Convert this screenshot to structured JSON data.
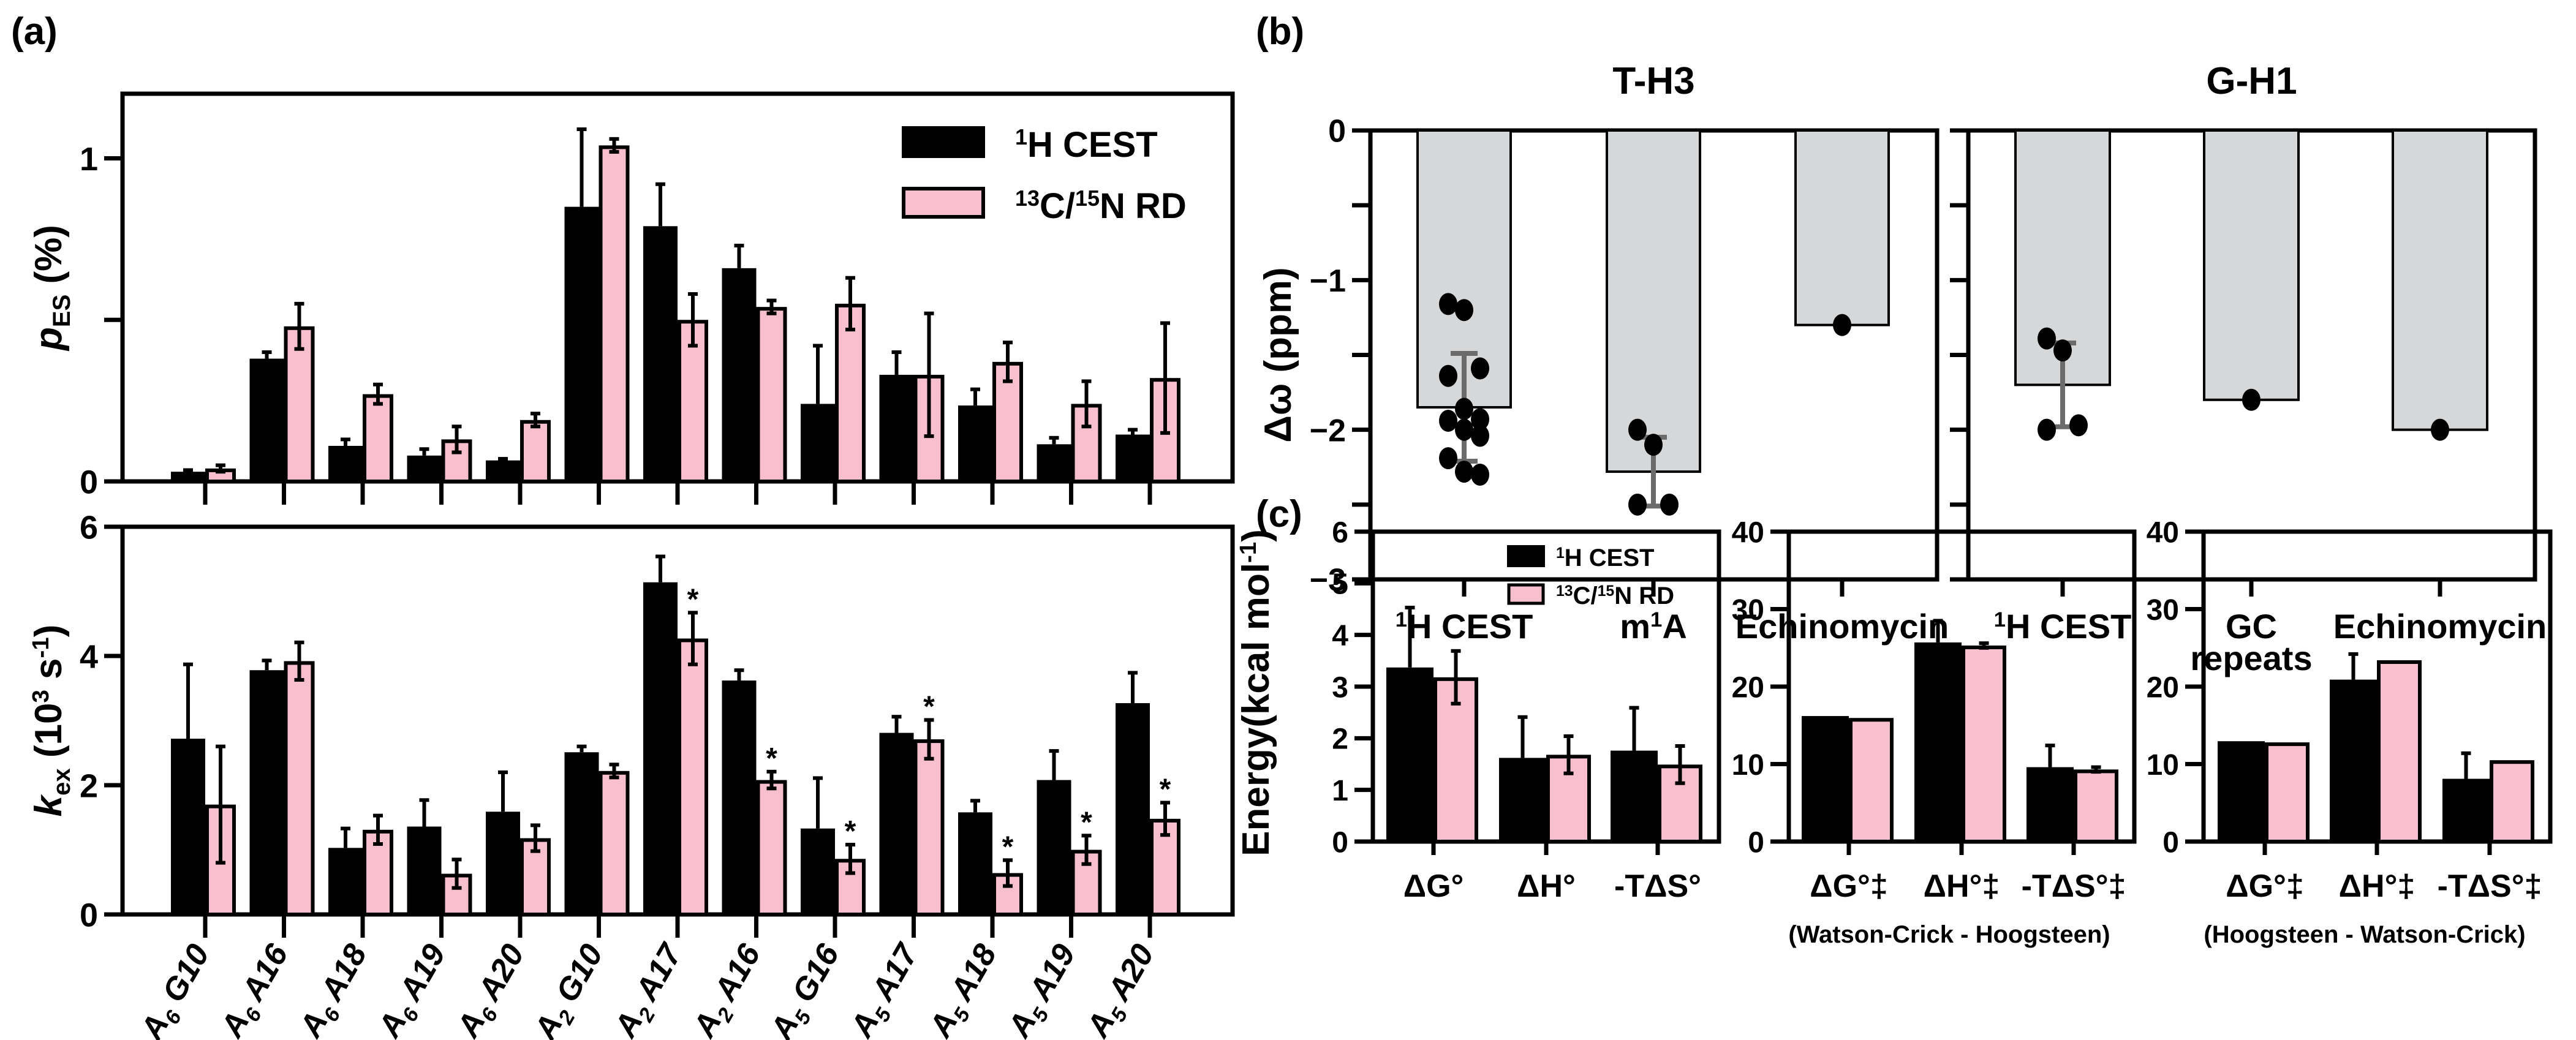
{
  "colors": {
    "cest": "#000000",
    "rd": "#f8c0ce",
    "gray_bar": "#d6d7d9",
    "gray_err": "#6b6b6b"
  },
  "panel_labels": {
    "a": "(a)",
    "b": "(b)",
    "c": "(c)"
  },
  "chart_data": [
    {
      "id": "a-pes",
      "type": "bar",
      "panel": "(a)",
      "title": "",
      "ylabel": "pES (%)",
      "ylabel_main": "p",
      "ylabel_sub": "ES",
      "ylabel_tail": " (%)",
      "xlabel": "",
      "ylim": [
        0,
        1.2
      ],
      "yticks": [
        0,
        0.5,
        1
      ],
      "ytick_labels": [
        "0",
        "",
        "1"
      ],
      "legend": {
        "position": "top-right",
        "entries": [
          "¹H CEST",
          "¹³C/¹⁵N RD"
        ]
      },
      "categories": [
        {
          "base": "A",
          "sub": "6",
          "name": "G10"
        },
        {
          "base": "A",
          "sub": "6",
          "name": "A16"
        },
        {
          "base": "A",
          "sub": "6",
          "name": "A18"
        },
        {
          "base": "A",
          "sub": "6",
          "name": "A19"
        },
        {
          "base": "A",
          "sub": "6",
          "name": "A20"
        },
        {
          "base": "A",
          "sub": "2",
          "name": "G10"
        },
        {
          "base": "A",
          "sub": "2",
          "name": "A17"
        },
        {
          "base": "A",
          "sub": "2",
          "name": "A16"
        },
        {
          "base": "A",
          "sub": "5",
          "name": "G16"
        },
        {
          "base": "A",
          "sub": "5",
          "name": "A17"
        },
        {
          "base": "A",
          "sub": "5",
          "name": "A18"
        },
        {
          "base": "A",
          "sub": "5",
          "name": "A19"
        },
        {
          "base": "A",
          "sub": "5",
          "name": "A20"
        }
      ],
      "series": [
        {
          "name": "1H CEST",
          "values": [
            0.03,
            0.38,
            0.11,
            0.08,
            0.065,
            0.85,
            0.79,
            0.66,
            0.24,
            0.33,
            0.235,
            0.115,
            0.145
          ],
          "errors": [
            0.005,
            0.02,
            0.02,
            0.02,
            0.005,
            0.24,
            0.13,
            0.07,
            0.18,
            0.07,
            0.05,
            0.02,
            0.015
          ]
        },
        {
          "name": "13C/15N RD",
          "values": [
            0.04,
            0.48,
            0.27,
            0.13,
            0.19,
            1.04,
            0.5,
            0.54,
            0.55,
            0.33,
            0.37,
            0.24,
            0.32
          ],
          "errors": [
            0.01,
            0.07,
            0.03,
            0.04,
            0.02,
            0.02,
            0.08,
            0.02,
            0.08,
            0.19,
            0.06,
            0.07,
            0.17
          ]
        }
      ]
    },
    {
      "id": "a-kex",
      "type": "bar",
      "panel": "(a)",
      "title": "",
      "ylabel": "kex (10³ s⁻¹)",
      "ylabel_main": "k",
      "ylabel_sub": "ex",
      "ylabel_tail": " (10³ s⁻¹)",
      "xlabel": "",
      "ylim": [
        0,
        6
      ],
      "yticks": [
        0,
        2,
        4,
        6
      ],
      "ytick_labels": [
        "0",
        "2",
        "4",
        "6"
      ],
      "categories_ref": "a-pes",
      "series": [
        {
          "name": "1H CEST",
          "values": [
            2.72,
            3.78,
            1.03,
            1.36,
            1.59,
            2.51,
            5.14,
            3.62,
            1.33,
            2.81,
            1.58,
            2.08,
            3.27
          ],
          "errors": [
            1.15,
            0.15,
            0.3,
            0.41,
            0.61,
            0.09,
            0.4,
            0.16,
            0.78,
            0.25,
            0.18,
            0.45,
            0.47
          ]
        },
        {
          "name": "13C/15N RD",
          "values": [
            1.7,
            3.92,
            1.31,
            0.63,
            1.18,
            2.22,
            4.27,
            2.08,
            0.86,
            2.71,
            0.64,
            1.0,
            1.48
          ],
          "errors": [
            0.9,
            0.29,
            0.22,
            0.22,
            0.2,
            0.1,
            0.4,
            0.13,
            0.22,
            0.3,
            0.2,
            0.22,
            0.25
          ]
        }
      ],
      "significance": [
        "",
        "",
        "",
        "",
        "",
        "",
        "*",
        "*",
        "*",
        "*",
        "*",
        "*",
        "*"
      ],
      "significance_series": "13C/15N RD"
    },
    {
      "id": "b-th3",
      "type": "bar",
      "panel": "(b)",
      "title": "T-H3",
      "ylabel": "Δω (ppm)",
      "xlabel": "",
      "ylim": [
        -3,
        0
      ],
      "yticks": [
        0,
        -0.5,
        -1,
        -1.5,
        -2,
        -2.5,
        -3
      ],
      "ytick_labels": [
        "0",
        "",
        "−1",
        "",
        "−2",
        "",
        "−3"
      ],
      "categories": [
        "¹H CEST",
        "m¹A",
        "Echinomycin"
      ],
      "values": [
        -1.85,
        -2.28,
        -1.3
      ],
      "errors": [
        0.36,
        0.23,
        null
      ],
      "points": [
        [
          -1.16,
          -1.2,
          -1.59,
          -1.64,
          -1.86,
          -1.93,
          -1.94,
          -2.0,
          -2.04,
          -2.19,
          -2.28,
          -2.3
        ],
        [
          -2.0,
          -2.1,
          -2.5,
          -2.5
        ],
        [
          -1.3
        ]
      ]
    },
    {
      "id": "b-gh1",
      "type": "bar",
      "panel": "(b)",
      "title": "G-H1",
      "ylabel": "",
      "xlabel": "",
      "ylim": [
        -3,
        0
      ],
      "yticks": [
        0,
        -0.5,
        -1,
        -1.5,
        -2,
        -2.5,
        -3
      ],
      "ytick_labels": [
        "",
        "",
        "",
        "",
        "",
        "",
        ""
      ],
      "categories": [
        "¹H CEST",
        "GC\nrepeats",
        "Echinomycin"
      ],
      "values": [
        -1.7,
        -1.8,
        -2.0
      ],
      "errors": [
        0.28,
        null,
        null
      ],
      "points": [
        [
          -1.39,
          -1.47,
          -1.97,
          -2.0
        ],
        [
          -1.8
        ],
        [
          -2.0
        ]
      ]
    },
    {
      "id": "c-thermo",
      "type": "bar",
      "panel": "(c)",
      "title": "",
      "ylabel": "Energy(kcal mol⁻¹)",
      "xlabel": "",
      "ylim": [
        0,
        6
      ],
      "yticks": [
        0,
        1,
        2,
        3,
        4,
        5,
        6
      ],
      "ytick_labels": [
        "0",
        "1",
        "2",
        "3",
        "4",
        "5",
        "6"
      ],
      "legend": {
        "position": "top-right",
        "entries": [
          "¹H CEST",
          "¹³C/¹⁵N RD"
        ]
      },
      "categories": [
        "ΔG°",
        "ΔH°",
        "-TΔS°"
      ],
      "series": [
        {
          "name": "1H CEST",
          "values": [
            3.37,
            1.62,
            1.76
          ],
          "errors": [
            1.16,
            0.79,
            0.83
          ]
        },
        {
          "name": "13C/15N RD",
          "values": [
            3.18,
            1.68,
            1.49
          ],
          "errors": [
            0.51,
            0.36,
            0.36
          ]
        }
      ]
    },
    {
      "id": "c-wc-hg",
      "type": "bar",
      "panel": "(c)",
      "title": "",
      "ylabel": "",
      "xlabel": "(Watson-Crick - Hoogsteen)",
      "ylim": [
        0,
        40
      ],
      "yticks": [
        0,
        10,
        20,
        30,
        40
      ],
      "ytick_labels": [
        "0",
        "10",
        "20",
        "30",
        "40"
      ],
      "categories": [
        "ΔG°‡",
        "ΔH°‡",
        "-TΔS°‡"
      ],
      "series": [
        {
          "name": "1H CEST",
          "values": [
            16.2,
            25.7,
            9.6
          ],
          "errors": [
            null,
            2.8,
            2.8
          ]
        },
        {
          "name": "13C/15N RD",
          "values": [
            15.95,
            25.3,
            9.3
          ],
          "errors": [
            null,
            0.3,
            0.3
          ]
        }
      ]
    },
    {
      "id": "c-hg-wc",
      "type": "bar",
      "panel": "(c)",
      "title": "",
      "ylabel": "",
      "xlabel": "(Hoogsteen - Watson-Crick)",
      "ylim": [
        0,
        40
      ],
      "yticks": [
        0,
        10,
        20,
        30,
        40
      ],
      "ytick_labels": [
        "0",
        "10",
        "20",
        "30",
        "40"
      ],
      "categories": [
        "ΔG°‡",
        "ΔH°‡",
        "-TΔS°‡"
      ],
      "series": [
        {
          "name": "1H CEST",
          "values": [
            12.95,
            20.9,
            8.1
          ],
          "errors": [
            null,
            3.3,
            3.3
          ]
        },
        {
          "name": "13C/15N RD",
          "values": [
            12.8,
            23.4,
            10.5
          ],
          "errors": [
            null,
            null,
            null
          ]
        }
      ]
    }
  ]
}
